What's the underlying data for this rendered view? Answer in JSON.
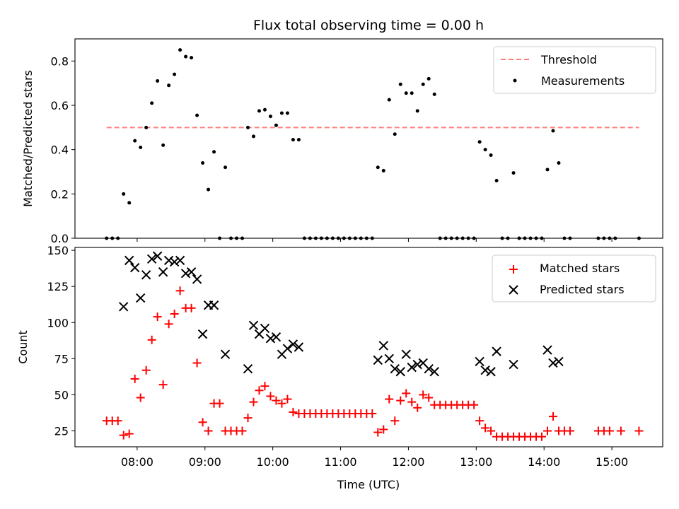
{
  "chart_data": [
    {
      "type": "scatter",
      "title": "Flux total observing time = 0.00 h",
      "xlabel": "",
      "ylabel": "Matched/Predicted stars",
      "ylim": [
        0,
        0.9
      ],
      "yticks": [
        "0.0",
        "0.2",
        "0.4",
        "0.6",
        "0.8"
      ],
      "ytick_values": [
        0,
        0.2,
        0.4,
        0.6,
        0.8
      ],
      "legend_position": "top-right",
      "threshold": {
        "name": "Threshold",
        "value": 0.5,
        "x_start": "07:33",
        "x_end": "15:24",
        "color": "#ff7f7f"
      },
      "series": [
        {
          "name": "Measurements",
          "color": "#000000",
          "points": [
            [
              "07:33",
              0
            ],
            [
              "07:38",
              0
            ],
            [
              "07:43",
              0
            ],
            [
              "07:48",
              0.2
            ],
            [
              "07:53",
              0.16
            ],
            [
              "07:58",
              0.44
            ],
            [
              "08:03",
              0.41
            ],
            [
              "08:08",
              0.5
            ],
            [
              "08:13",
              0.61
            ],
            [
              "08:18",
              0.71
            ],
            [
              "08:23",
              0.42
            ],
            [
              "08:28",
              0.69
            ],
            [
              "08:33",
              0.74
            ],
            [
              "08:38",
              0.85
            ],
            [
              "08:43",
              0.82
            ],
            [
              "08:48",
              0.815
            ],
            [
              "08:53",
              0.555
            ],
            [
              "08:58",
              0.34
            ],
            [
              "09:03",
              0.22
            ],
            [
              "09:08",
              0.39
            ],
            [
              "09:13",
              0
            ],
            [
              "09:18",
              0.32
            ],
            [
              "09:23",
              0
            ],
            [
              "09:28",
              0
            ],
            [
              "09:33",
              0
            ],
            [
              "09:38",
              0.5
            ],
            [
              "09:43",
              0.46
            ],
            [
              "09:48",
              0.575
            ],
            [
              "09:53",
              0.58
            ],
            [
              "09:58",
              0.55
            ],
            [
              "10:03",
              0.51
            ],
            [
              "10:08",
              0.565
            ],
            [
              "10:13",
              0.565
            ],
            [
              "10:18",
              0.445
            ],
            [
              "10:23",
              0.445
            ],
            [
              "10:28",
              0
            ],
            [
              "10:33",
              0
            ],
            [
              "10:38",
              0
            ],
            [
              "10:43",
              0
            ],
            [
              "10:48",
              0
            ],
            [
              "10:53",
              0
            ],
            [
              "10:58",
              0
            ],
            [
              "11:03",
              0
            ],
            [
              "11:08",
              0
            ],
            [
              "11:13",
              0
            ],
            [
              "11:18",
              0
            ],
            [
              "11:23",
              0
            ],
            [
              "11:28",
              0
            ],
            [
              "11:33",
              0.32
            ],
            [
              "11:38",
              0.305
            ],
            [
              "11:43",
              0.625
            ],
            [
              "11:48",
              0.47
            ],
            [
              "11:53",
              0.695
            ],
            [
              "11:58",
              0.655
            ],
            [
              "12:03",
              0.655
            ],
            [
              "12:08",
              0.575
            ],
            [
              "12:13",
              0.695
            ],
            [
              "12:18",
              0.72
            ],
            [
              "12:23",
              0.65
            ],
            [
              "12:28",
              0
            ],
            [
              "12:33",
              0
            ],
            [
              "12:38",
              0
            ],
            [
              "12:43",
              0
            ],
            [
              "12:48",
              0
            ],
            [
              "12:53",
              0
            ],
            [
              "12:58",
              0
            ],
            [
              "13:03",
              0.435
            ],
            [
              "13:08",
              0.4
            ],
            [
              "13:13",
              0.375
            ],
            [
              "13:18",
              0.26
            ],
            [
              "13:23",
              0
            ],
            [
              "13:28",
              0
            ],
            [
              "13:33",
              0.295
            ],
            [
              "13:38",
              0
            ],
            [
              "13:43",
              0
            ],
            [
              "13:48",
              0
            ],
            [
              "13:53",
              0
            ],
            [
              "13:58",
              0
            ],
            [
              "14:03",
              0.31
            ],
            [
              "14:08",
              0.485
            ],
            [
              "14:13",
              0.34
            ],
            [
              "14:18",
              0
            ],
            [
              "14:23",
              0
            ],
            [
              "14:48",
              0
            ],
            [
              "14:53",
              0
            ],
            [
              "14:58",
              0
            ],
            [
              "15:03",
              0
            ],
            [
              "15:24",
              0
            ]
          ]
        }
      ]
    },
    {
      "type": "scatter",
      "title": "",
      "xlabel": "Time (UTC)",
      "ylabel": "Count",
      "ylim": [
        14,
        152
      ],
      "yticks": [
        "25",
        "50",
        "75",
        "100",
        "125",
        "150"
      ],
      "ytick_values": [
        25,
        50,
        75,
        100,
        125,
        150
      ],
      "xlim": [
        "07:05",
        "15:45"
      ],
      "xticks": [
        "08:00",
        "09:00",
        "10:00",
        "11:00",
        "12:00",
        "13:00",
        "14:00",
        "15:00"
      ],
      "legend_position": "top-right",
      "series": [
        {
          "name": "Matched stars",
          "marker": "+",
          "color": "#ff0000",
          "points": [
            [
              "07:33",
              32
            ],
            [
              "07:38",
              32
            ],
            [
              "07:43",
              32
            ],
            [
              "07:48",
              22
            ],
            [
              "07:53",
              23
            ],
            [
              "07:58",
              61
            ],
            [
              "08:03",
              48
            ],
            [
              "08:08",
              67
            ],
            [
              "08:13",
              88
            ],
            [
              "08:18",
              104
            ],
            [
              "08:23",
              57
            ],
            [
              "08:28",
              99
            ],
            [
              "08:33",
              106
            ],
            [
              "08:38",
              122
            ],
            [
              "08:43",
              110
            ],
            [
              "08:48",
              110
            ],
            [
              "08:53",
              72
            ],
            [
              "08:58",
              31
            ],
            [
              "09:03",
              25
            ],
            [
              "09:08",
              44
            ],
            [
              "09:13",
              44
            ],
            [
              "09:18",
              25
            ],
            [
              "09:23",
              25
            ],
            [
              "09:28",
              25
            ],
            [
              "09:33",
              25
            ],
            [
              "09:38",
              34
            ],
            [
              "09:43",
              45
            ],
            [
              "09:48",
              53
            ],
            [
              "09:53",
              56
            ],
            [
              "09:58",
              49
            ],
            [
              "10:03",
              46
            ],
            [
              "10:08",
              44
            ],
            [
              "10:13",
              47
            ],
            [
              "10:18",
              38
            ],
            [
              "10:23",
              37
            ],
            [
              "10:28",
              37
            ],
            [
              "10:33",
              37
            ],
            [
              "10:38",
              37
            ],
            [
              "10:43",
              37
            ],
            [
              "10:48",
              37
            ],
            [
              "10:53",
              37
            ],
            [
              "10:58",
              37
            ],
            [
              "11:03",
              37
            ],
            [
              "11:08",
              37
            ],
            [
              "11:13",
              37
            ],
            [
              "11:18",
              37
            ],
            [
              "11:23",
              37
            ],
            [
              "11:28",
              37
            ],
            [
              "11:33",
              24
            ],
            [
              "11:38",
              26
            ],
            [
              "11:43",
              47
            ],
            [
              "11:48",
              32
            ],
            [
              "11:53",
              46
            ],
            [
              "11:58",
              51
            ],
            [
              "12:03",
              45
            ],
            [
              "12:08",
              41
            ],
            [
              "12:13",
              50
            ],
            [
              "12:18",
              48
            ],
            [
              "12:23",
              43
            ],
            [
              "12:28",
              43
            ],
            [
              "12:33",
              43
            ],
            [
              "12:38",
              43
            ],
            [
              "12:43",
              43
            ],
            [
              "12:48",
              43
            ],
            [
              "12:53",
              43
            ],
            [
              "12:58",
              43
            ],
            [
              "13:03",
              32
            ],
            [
              "13:08",
              27
            ],
            [
              "13:13",
              25
            ],
            [
              "13:18",
              21
            ],
            [
              "13:23",
              21
            ],
            [
              "13:28",
              21
            ],
            [
              "13:33",
              21
            ],
            [
              "13:38",
              21
            ],
            [
              "13:43",
              21
            ],
            [
              "13:48",
              21
            ],
            [
              "13:53",
              21
            ],
            [
              "13:58",
              21
            ],
            [
              "14:03",
              25
            ],
            [
              "14:08",
              35
            ],
            [
              "14:13",
              25
            ],
            [
              "14:18",
              25
            ],
            [
              "14:23",
              25
            ],
            [
              "14:48",
              25
            ],
            [
              "14:53",
              25
            ],
            [
              "14:58",
              25
            ],
            [
              "15:08",
              25
            ],
            [
              "15:24",
              25
            ]
          ]
        },
        {
          "name": "Predicted stars",
          "marker": "x",
          "color": "#000000",
          "points": [
            [
              "07:48",
              111
            ],
            [
              "07:53",
              143
            ],
            [
              "07:58",
              138
            ],
            [
              "08:03",
              117
            ],
            [
              "08:08",
              133
            ],
            [
              "08:13",
              144
            ],
            [
              "08:18",
              146
            ],
            [
              "08:23",
              135
            ],
            [
              "08:28",
              143
            ],
            [
              "08:33",
              142
            ],
            [
              "08:38",
              143
            ],
            [
              "08:43",
              134
            ],
            [
              "08:48",
              135
            ],
            [
              "08:53",
              130
            ],
            [
              "08:58",
              92
            ],
            [
              "09:03",
              112
            ],
            [
              "09:08",
              112
            ],
            [
              "09:18",
              78
            ],
            [
              "09:38",
              68
            ],
            [
              "09:43",
              98
            ],
            [
              "09:48",
              92
            ],
            [
              "09:53",
              96
            ],
            [
              "09:58",
              89
            ],
            [
              "10:03",
              90
            ],
            [
              "10:08",
              78
            ],
            [
              "10:13",
              82
            ],
            [
              "10:18",
              85
            ],
            [
              "10:23",
              83
            ],
            [
              "11:33",
              74
            ],
            [
              "11:38",
              84
            ],
            [
              "11:43",
              75
            ],
            [
              "11:48",
              68
            ],
            [
              "11:53",
              66
            ],
            [
              "11:58",
              78
            ],
            [
              "12:03",
              69
            ],
            [
              "12:08",
              71
            ],
            [
              "12:13",
              72
            ],
            [
              "12:18",
              68
            ],
            [
              "12:23",
              66
            ],
            [
              "13:03",
              73
            ],
            [
              "13:08",
              67
            ],
            [
              "13:13",
              66
            ],
            [
              "13:18",
              80
            ],
            [
              "13:33",
              71
            ],
            [
              "14:03",
              81
            ],
            [
              "14:08",
              72
            ],
            [
              "14:13",
              73
            ]
          ]
        }
      ]
    }
  ]
}
